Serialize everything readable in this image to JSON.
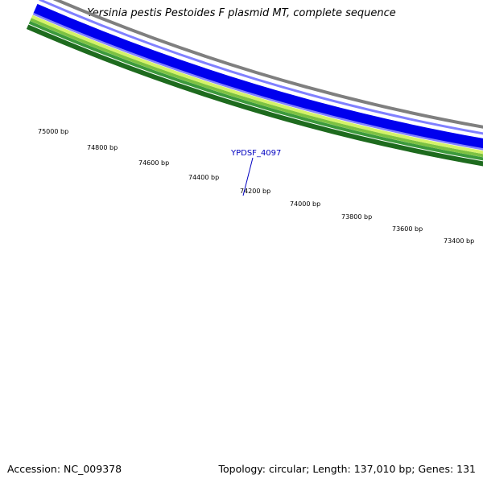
{
  "title": "Yersinia pestis Pestoides F plasmid MT, complete sequence",
  "footer": {
    "accession": "Accession: NC_009378",
    "summary": "Topology: circular; Length: 137,010 bp; Genes: 131"
  },
  "gene_label": "YPDSF_4097",
  "ruler": {
    "labels": [
      "75000 bp",
      "74800 bp",
      "74600 bp",
      "74400 bp",
      "74200 bp",
      "74000 bp",
      "73800 bp",
      "73600 bp",
      "73400 bp"
    ]
  },
  "colors": {
    "dark_green": "#1e6b1e",
    "mid_green": "#3c9a3c",
    "light_green": "#7dc242",
    "yellow_green": "#d4f26a",
    "blue": "#0000ee",
    "light_blue": "#8080ff",
    "backbone": "#7f7f7f",
    "tick": "#1e7a1e",
    "gene_label": "#0000c0"
  }
}
